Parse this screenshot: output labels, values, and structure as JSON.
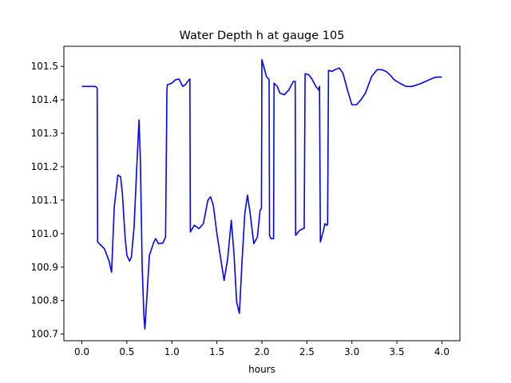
{
  "chart_data": {
    "type": "line",
    "title": "Water Depth h at gauge 105",
    "xlabel": "hours",
    "ylabel": "",
    "xlim": [
      -0.2,
      4.2
    ],
    "ylim": [
      100.68,
      101.56
    ],
    "xticks": [
      0.0,
      0.5,
      1.0,
      1.5,
      2.0,
      2.5,
      3.0,
      3.5,
      4.0
    ],
    "xtick_labels": [
      "0.0",
      "0.5",
      "1.0",
      "1.5",
      "2.0",
      "2.5",
      "3.0",
      "3.5",
      "4.0"
    ],
    "yticks": [
      100.7,
      100.8,
      100.9,
      101.0,
      101.1,
      101.2,
      101.3,
      101.4,
      101.5
    ],
    "ytick_labels": [
      "100.7",
      "100.8",
      "100.9",
      "101.0",
      "101.1",
      "101.2",
      "101.3",
      "101.4",
      "101.5"
    ],
    "grid": false,
    "line_color": "#0000ff",
    "series": [
      {
        "x": [
          0.0,
          0.1,
          0.15,
          0.17,
          0.175,
          0.2,
          0.25,
          0.3,
          0.33,
          0.36,
          0.4,
          0.43,
          0.45,
          0.48,
          0.5,
          0.53,
          0.55,
          0.58,
          0.61,
          0.635,
          0.65,
          0.67,
          0.69,
          0.7,
          0.72,
          0.75,
          0.8,
          0.82,
          0.85,
          0.9,
          0.93,
          0.945,
          0.95,
          1.0,
          1.04,
          1.08,
          1.12,
          1.15,
          1.19,
          1.2,
          1.205,
          1.25,
          1.3,
          1.35,
          1.4,
          1.43,
          1.46,
          1.5,
          1.54,
          1.58,
          1.62,
          1.66,
          1.69,
          1.72,
          1.75,
          1.78,
          1.81,
          1.84,
          1.87,
          1.91,
          1.95,
          1.98,
          1.995,
          2.0,
          2.05,
          2.08,
          2.085,
          2.1,
          2.13,
          2.135,
          2.17,
          2.2,
          2.25,
          2.3,
          2.35,
          2.37,
          2.375,
          2.42,
          2.46,
          2.47,
          2.48,
          2.52,
          2.55,
          2.6,
          2.63,
          2.64,
          2.65,
          2.68,
          2.7,
          2.72,
          2.73,
          2.74,
          2.78,
          2.81,
          2.86,
          2.9,
          2.95,
          3.0,
          3.05,
          3.1,
          3.15,
          3.22,
          3.28,
          3.33,
          3.38,
          3.42,
          3.47,
          3.53,
          3.6,
          3.67,
          3.75,
          3.82,
          3.9,
          3.95,
          4.0
        ],
        "y": [
          101.44,
          101.44,
          101.44,
          101.435,
          100.975,
          100.968,
          100.955,
          100.92,
          100.885,
          101.08,
          101.175,
          101.17,
          101.12,
          100.99,
          100.935,
          100.918,
          100.93,
          101.02,
          101.2,
          101.34,
          101.22,
          100.9,
          100.75,
          100.715,
          100.8,
          100.935,
          100.975,
          100.985,
          100.97,
          100.972,
          100.99,
          101.43,
          101.445,
          101.45,
          101.46,
          101.462,
          101.44,
          101.445,
          101.46,
          101.462,
          101.005,
          101.025,
          101.015,
          101.03,
          101.1,
          101.11,
          101.085,
          101.0,
          100.93,
          100.86,
          100.925,
          101.04,
          100.94,
          100.795,
          100.762,
          100.92,
          101.06,
          101.115,
          101.06,
          100.97,
          100.99,
          101.07,
          101.075,
          101.52,
          101.47,
          101.46,
          100.995,
          100.985,
          100.985,
          101.45,
          101.44,
          101.42,
          101.415,
          101.43,
          101.455,
          101.455,
          100.995,
          101.01,
          101.015,
          101.016,
          101.478,
          101.475,
          101.465,
          101.44,
          101.43,
          101.44,
          100.975,
          101.005,
          101.03,
          101.025,
          101.027,
          101.488,
          101.485,
          101.49,
          101.495,
          101.48,
          101.43,
          101.385,
          101.385,
          101.4,
          101.42,
          101.47,
          101.49,
          101.49,
          101.485,
          101.475,
          101.46,
          101.45,
          101.44,
          101.44,
          101.447,
          101.455,
          101.465,
          101.468,
          101.468
        ]
      }
    ]
  }
}
